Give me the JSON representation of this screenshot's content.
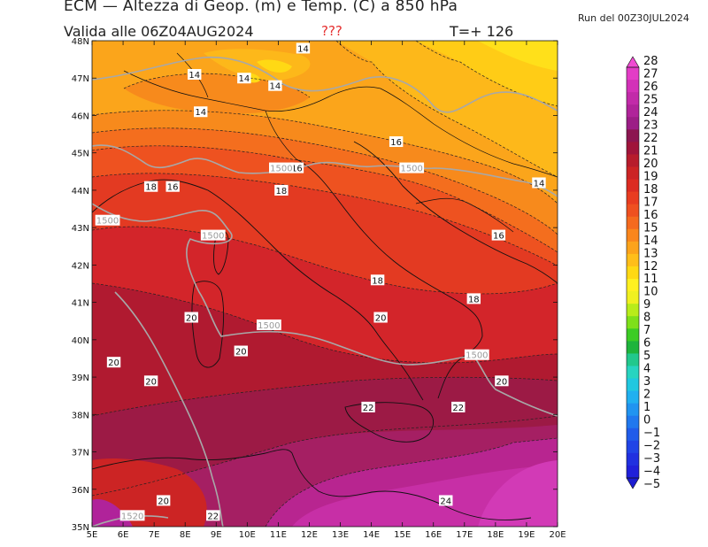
{
  "header": {
    "title": "ECM — Altezza di Geop. (m) e Temp. (C) a 850 hPa",
    "valid": "Valida alle 06Z04AUG2024",
    "question": "???",
    "timestep": "T=+ 126",
    "run": "Run del 00Z30JUL2024"
  },
  "map": {
    "lon_labels": [
      "5E",
      "6E",
      "7E",
      "8E",
      "9E",
      "10E",
      "11E",
      "12E",
      "13E",
      "14E",
      "15E",
      "16E",
      "17E",
      "18E",
      "19E",
      "20E"
    ],
    "lat_labels": [
      "48N",
      "47N",
      "46N",
      "45N",
      "44N",
      "43N",
      "42N",
      "41N",
      "40N",
      "39N",
      "38N",
      "37N",
      "36N",
      "35N"
    ],
    "temp_labels": [
      {
        "text": "14",
        "lon": 11.8,
        "lat": 47.8
      },
      {
        "text": "14",
        "lon": 8.3,
        "lat": 47.1
      },
      {
        "text": "14",
        "lon": 9.9,
        "lat": 47.0
      },
      {
        "text": "14",
        "lon": 10.9,
        "lat": 46.8
      },
      {
        "text": "14",
        "lon": 8.5,
        "lat": 46.1
      },
      {
        "text": "16",
        "lon": 14.8,
        "lat": 45.3
      },
      {
        "text": "16",
        "lon": 11.6,
        "lat": 44.6
      },
      {
        "text": "14",
        "lon": 19.4,
        "lat": 44.2
      },
      {
        "text": "18",
        "lon": 6.9,
        "lat": 44.1
      },
      {
        "text": "16",
        "lon": 7.6,
        "lat": 44.1
      },
      {
        "text": "18",
        "lon": 11.1,
        "lat": 44.0
      },
      {
        "text": "16",
        "lon": 18.1,
        "lat": 42.8
      },
      {
        "text": "18",
        "lon": 14.2,
        "lat": 41.6
      },
      {
        "text": "18",
        "lon": 17.3,
        "lat": 41.1
      },
      {
        "text": "20",
        "lon": 8.2,
        "lat": 40.6
      },
      {
        "text": "20",
        "lon": 14.3,
        "lat": 40.6
      },
      {
        "text": "20",
        "lon": 9.8,
        "lat": 39.7
      },
      {
        "text": "20",
        "lon": 5.7,
        "lat": 39.4
      },
      {
        "text": "20",
        "lon": 6.9,
        "lat": 38.9
      },
      {
        "text": "20",
        "lon": 18.2,
        "lat": 38.9
      },
      {
        "text": "22",
        "lon": 13.9,
        "lat": 38.2
      },
      {
        "text": "22",
        "lon": 16.8,
        "lat": 38.2
      },
      {
        "text": "20",
        "lon": 7.3,
        "lat": 35.7
      },
      {
        "text": "24",
        "lon": 16.4,
        "lat": 35.7
      },
      {
        "text": "22",
        "lon": 8.9,
        "lat": 35.3
      }
    ],
    "geop_labels": [
      {
        "text": "1500",
        "lon": 11.1,
        "lat": 44.6
      },
      {
        "text": "1500",
        "lon": 15.3,
        "lat": 44.6
      },
      {
        "text": "1500",
        "lon": 5.5,
        "lat": 43.2
      },
      {
        "text": "1500",
        "lon": 8.9,
        "lat": 42.8
      },
      {
        "text": "1500",
        "lon": 10.7,
        "lat": 40.4
      },
      {
        "text": "1500",
        "lon": 17.4,
        "lat": 39.6
      },
      {
        "text": "1520",
        "lon": 6.3,
        "lat": 35.3
      }
    ]
  },
  "colorbar": {
    "labels": [
      "28",
      "27",
      "26",
      "25",
      "24",
      "23",
      "22",
      "21",
      "20",
      "19",
      "18",
      "17",
      "16",
      "15",
      "14",
      "13",
      "12",
      "11",
      "10",
      "9",
      "8",
      "7",
      "6",
      "5",
      "4",
      "3",
      "2",
      "1",
      "0",
      "−1",
      "−2",
      "−3",
      "−4",
      "−5"
    ],
    "colors": [
      "#e33cc6",
      "#d331b8",
      "#c22aa9",
      "#b0239a",
      "#9c1d86",
      "#8c1650",
      "#a0143a",
      "#b71c2c",
      "#cc2424",
      "#dc2b22",
      "#e83c20",
      "#ef5020",
      "#f56a1e",
      "#fa861c",
      "#fca31b",
      "#ffbe1a",
      "#ffd914",
      "#fff020",
      "#f0f020",
      "#b8ec1a",
      "#7ee01a",
      "#3ccc24",
      "#1eb43c",
      "#22c88c",
      "#28d4c0",
      "#20c8e0",
      "#20b0f0",
      "#2094f0",
      "#2078ee",
      "#205cea",
      "#2044e6",
      "#2030e0",
      "#2020da"
    ]
  }
}
